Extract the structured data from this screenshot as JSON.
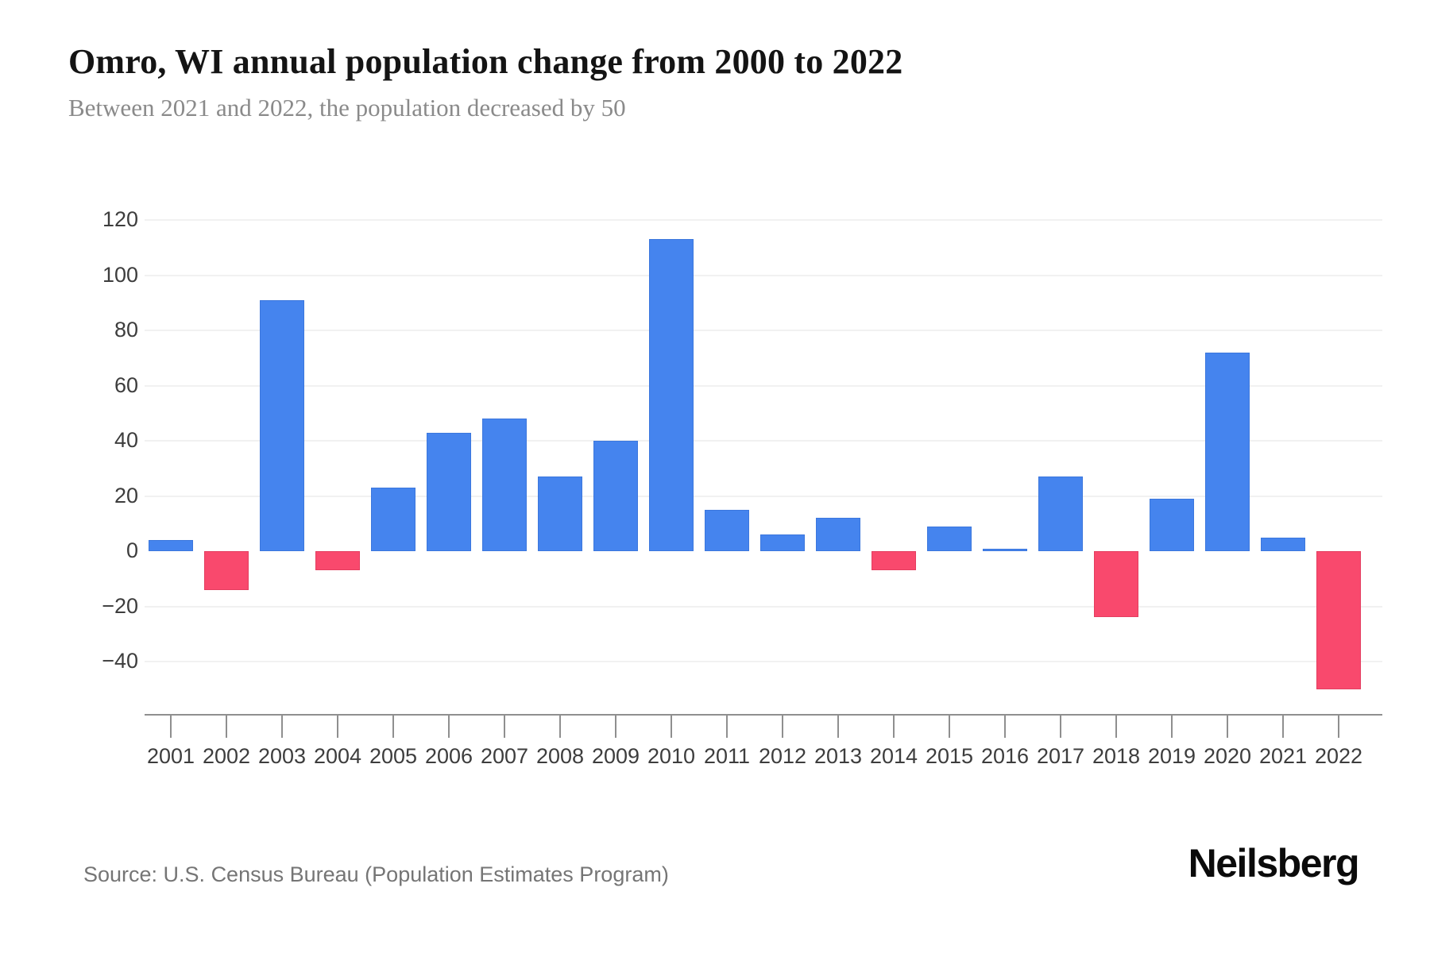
{
  "header": {
    "title": "Omro, WI annual population change from 2000 to 2022",
    "subtitle": "Between 2021 and 2022, the population decreased by 50"
  },
  "footer": {
    "source": "Source: U.S. Census Bureau (Population Estimates Program)",
    "brand": "Neilsberg"
  },
  "chart_data": {
    "type": "bar",
    "title": "Omro, WI annual population change from 2000 to 2022",
    "categories": [
      "2001",
      "2002",
      "2003",
      "2004",
      "2005",
      "2006",
      "2007",
      "2008",
      "2009",
      "2010",
      "2011",
      "2012",
      "2013",
      "2014",
      "2015",
      "2016",
      "2017",
      "2018",
      "2019",
      "2020",
      "2021",
      "2022"
    ],
    "values": [
      4,
      -14,
      91,
      -7,
      23,
      43,
      48,
      27,
      40,
      113,
      15,
      6,
      12,
      -7,
      9,
      1,
      27,
      -24,
      19,
      72,
      5,
      -50
    ],
    "xlabel": "",
    "ylabel": "",
    "y_ticks": [
      120,
      100,
      80,
      60,
      40,
      20,
      0,
      -20,
      -40
    ],
    "ylim": [
      -55,
      125
    ],
    "grid": true,
    "legend_position": "none",
    "colors": {
      "positive": "#4584ee",
      "negative": "#f9496d",
      "gridline": "#f1f1f1",
      "axis": "#8f8f8f"
    }
  }
}
